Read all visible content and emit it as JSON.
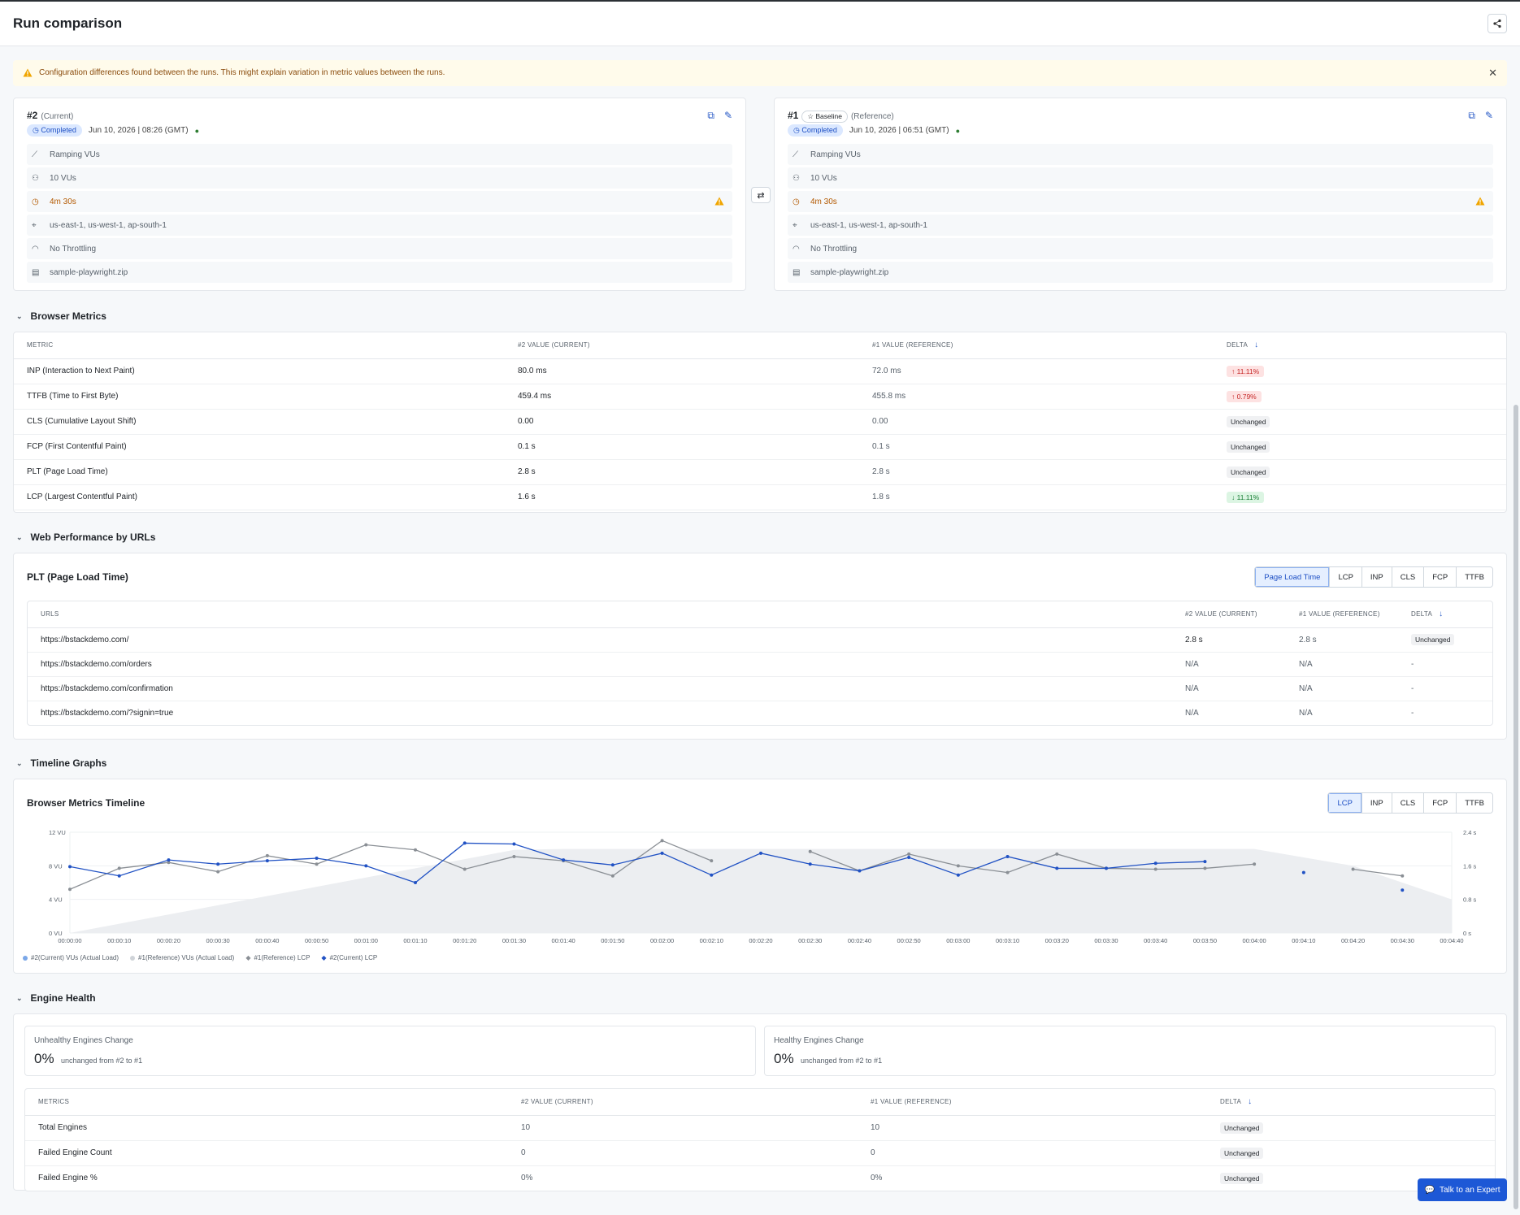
{
  "header": {
    "title": "Run comparison"
  },
  "banner": {
    "message": "Configuration differences found between the runs. This might explain variation in metric values between the runs."
  },
  "runs": [
    {
      "num": "#2",
      "tag": "(Current)",
      "baseline": "",
      "status": "Completed",
      "date": "Jun 10, 2026 | 08:26 (GMT)",
      "rows": [
        "Ramping VUs",
        "10 VUs",
        "4m 30s",
        "us-east-1, us-west-1, ap-south-1",
        "No Throttling",
        "sample-playwright.zip"
      ]
    },
    {
      "num": "#1",
      "tag": "(Reference)",
      "baseline": "Baseline",
      "status": "Completed",
      "date": "Jun 10, 2026 | 06:51 (GMT)",
      "rows": [
        "Ramping VUs",
        "10 VUs",
        "4m 30s",
        "us-east-1, us-west-1, ap-south-1",
        "No Throttling",
        "sample-playwright.zip"
      ]
    }
  ],
  "browser_metrics": {
    "title": "Browser Metrics",
    "headers": [
      "METRIC",
      "#2 VALUE (CURRENT)",
      "#1 VALUE (REFERENCE)",
      "DELTA"
    ],
    "rows": [
      {
        "metric": "INP (Interaction to Next Paint)",
        "cur": "80.0 ms",
        "ref": "72.0 ms",
        "delta": "11.11%",
        "dir": "up"
      },
      {
        "metric": "TTFB (Time to First Byte)",
        "cur": "459.4 ms",
        "ref": "455.8 ms",
        "delta": "0.79%",
        "dir": "up"
      },
      {
        "metric": "CLS (Cumulative Layout Shift)",
        "cur": "0.00",
        "ref": "0.00",
        "delta": "Unchanged",
        "dir": "none"
      },
      {
        "metric": "FCP (First Contentful Paint)",
        "cur": "0.1 s",
        "ref": "0.1 s",
        "delta": "Unchanged",
        "dir": "none"
      },
      {
        "metric": "PLT (Page Load Time)",
        "cur": "2.8 s",
        "ref": "2.8 s",
        "delta": "Unchanged",
        "dir": "none"
      },
      {
        "metric": "LCP (Largest Contentful Paint)",
        "cur": "1.6 s",
        "ref": "1.8 s",
        "delta": "11.11%",
        "dir": "down"
      }
    ]
  },
  "web_perf": {
    "title": "Web Performance by URLs",
    "subtitle": "PLT (Page Load Time)",
    "tabs": [
      "Page Load Time",
      "LCP",
      "INP",
      "CLS",
      "FCP",
      "TTFB"
    ],
    "headers": [
      "URLS",
      "#2 VALUE (CURRENT)",
      "#1 VALUE (REFERENCE)",
      "DELTA"
    ],
    "rows": [
      {
        "url": "https://bstackdemo.com/",
        "cur": "2.8 s",
        "ref": "2.8 s",
        "delta": "Unchanged"
      },
      {
        "url": "https://bstackdemo.com/orders",
        "cur": "N/A",
        "ref": "N/A",
        "delta": "-"
      },
      {
        "url": "https://bstackdemo.com/confirmation",
        "cur": "N/A",
        "ref": "N/A",
        "delta": "-"
      },
      {
        "url": "https://bstackdemo.com/?signin=true",
        "cur": "N/A",
        "ref": "N/A",
        "delta": "-"
      }
    ]
  },
  "timeline": {
    "title": "Timeline Graphs",
    "subtitle": "Browser Metrics Timeline",
    "tabs": [
      "LCP",
      "INP",
      "CLS",
      "FCP",
      "TTFB"
    ]
  },
  "chart_data": {
    "type": "line",
    "x": [
      "00:00:00",
      "00:00:10",
      "00:00:20",
      "00:00:30",
      "00:00:40",
      "00:00:50",
      "00:01:00",
      "00:01:10",
      "00:01:20",
      "00:01:30",
      "00:01:40",
      "00:01:50",
      "00:02:00",
      "00:02:10",
      "00:02:20",
      "00:02:30",
      "00:02:40",
      "00:02:50",
      "00:03:00",
      "00:03:10",
      "00:03:20",
      "00:03:30",
      "00:03:40",
      "00:03:50",
      "00:04:00",
      "00:04:10",
      "00:04:20",
      "00:04:30",
      "00:04:40"
    ],
    "y_left_ticks": [
      "0 VU",
      "4 VU",
      "8 VU",
      "12 VU"
    ],
    "y_right_ticks": [
      "0 s",
      "0.8 s",
      "1.6 s",
      "2.4 s"
    ],
    "ylim_left": [
      0,
      12
    ],
    "ylim_right": [
      0,
      2.4
    ],
    "vu_area": [
      0,
      1.1,
      2.2,
      3.3,
      4.4,
      5.5,
      6.6,
      7.7,
      8.8,
      9.9,
      10,
      10,
      10,
      10,
      10,
      10,
      10,
      10,
      10,
      10,
      10,
      10,
      10,
      10,
      10,
      9,
      8,
      6,
      4
    ],
    "series": [
      {
        "name": "#1(Reference) LCP",
        "color": "#8a8f95",
        "values": [
          1.04,
          1.54,
          1.68,
          1.46,
          1.84,
          1.64,
          2.1,
          1.98,
          1.52,
          1.82,
          1.72,
          1.36,
          2.2,
          1.72,
          null,
          1.94,
          1.48,
          1.88,
          1.6,
          1.44,
          1.88,
          1.54,
          1.52,
          1.54,
          1.64,
          null,
          1.52,
          1.36,
          null
        ]
      },
      {
        "name": "#2(Current) LCP",
        "color": "#2152c4",
        "values": [
          1.58,
          1.36,
          1.74,
          1.64,
          1.72,
          1.78,
          1.6,
          1.2,
          2.14,
          2.12,
          1.74,
          1.62,
          1.9,
          1.38,
          1.9,
          1.64,
          1.48,
          1.8,
          1.38,
          1.82,
          1.54,
          1.54,
          1.66,
          1.7,
          null,
          1.44,
          null,
          1.02,
          null
        ]
      }
    ],
    "legend": [
      "#2(Current) VUs (Actual Load)",
      "#1(Reference) VUs (Actual Load)",
      "#1(Reference) LCP",
      "#2(Current) LCP"
    ]
  },
  "engine": {
    "title": "Engine Health",
    "unhealthy": {
      "label": "Unhealthy Engines Change",
      "value": "0%",
      "note": "unchanged from #2 to #1"
    },
    "healthy": {
      "label": "Healthy Engines Change",
      "value": "0%",
      "note": "unchanged from #2 to #1"
    },
    "headers": [
      "METRICS",
      "#2 VALUE (CURRENT)",
      "#1 VALUE (REFERENCE)",
      "DELTA"
    ],
    "rows": [
      {
        "metric": "Total Engines",
        "cur": "10",
        "ref": "10",
        "delta": "Unchanged"
      },
      {
        "metric": "Failed Engine Count",
        "cur": "0",
        "ref": "0",
        "delta": "Unchanged"
      },
      {
        "metric": "Failed Engine %",
        "cur": "0%",
        "ref": "0%",
        "delta": "Unchanged"
      }
    ]
  },
  "expert_button": "Talk to an Expert"
}
